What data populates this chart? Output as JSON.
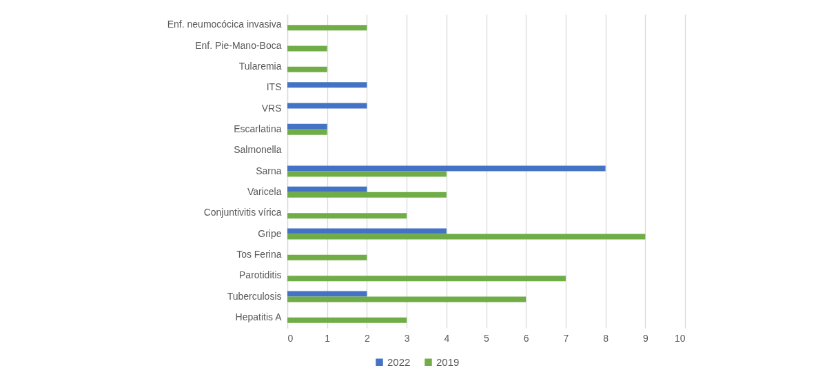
{
  "chart_data": {
    "type": "bar",
    "orientation": "horizontal",
    "categories": [
      "Enf. neumocócica invasiva",
      "Enf. Pie-Mano-Boca",
      "Tularemia",
      "ITS",
      "VRS",
      "Escarlatina",
      "Salmonella",
      "Sarna",
      "Varicela",
      "Conjuntivitis vírica",
      "Gripe",
      "Tos Ferina",
      "Parotiditis",
      "Tuberculosis",
      "Hepatitis A"
    ],
    "series": [
      {
        "name": "2022",
        "color": "#4472c4",
        "values": [
          null,
          null,
          null,
          2,
          2,
          1,
          null,
          8,
          2,
          null,
          4,
          null,
          null,
          2,
          null
        ]
      },
      {
        "name": "2019",
        "color": "#70ad47",
        "values": [
          2,
          1,
          1,
          null,
          null,
          1,
          null,
          4,
          4,
          3,
          9,
          2,
          7,
          6,
          3
        ]
      }
    ],
    "xlim": [
      0,
      10
    ],
    "xticks": [
      0,
      1,
      2,
      3,
      4,
      5,
      6,
      7,
      8,
      9,
      10
    ],
    "grid": "x",
    "legend": "bottom"
  }
}
